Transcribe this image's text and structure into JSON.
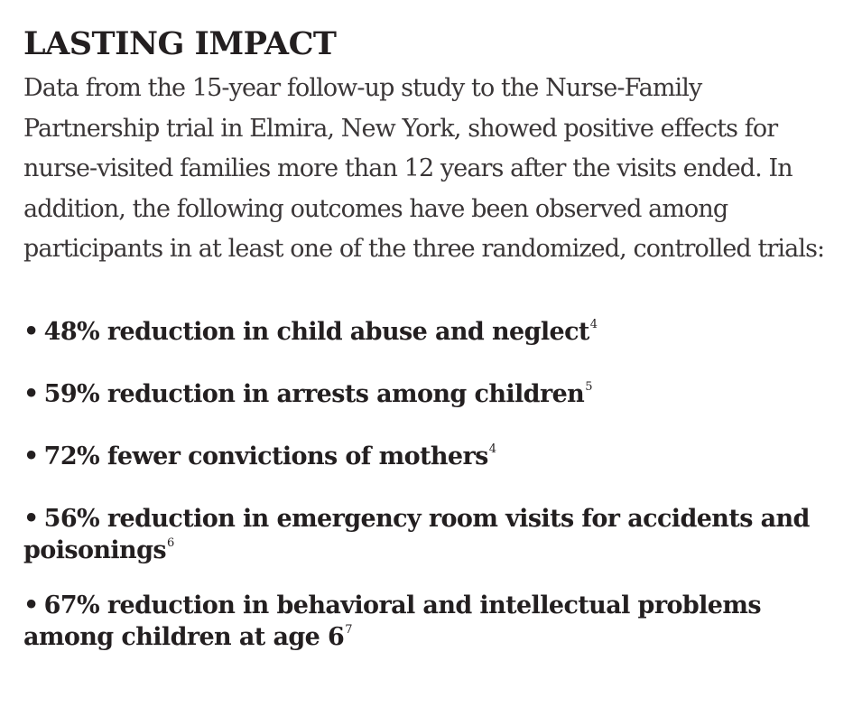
{
  "heading": {
    "title": "LASTING IMPACT"
  },
  "intro": {
    "text": "Data from the 15-year follow-up study to the Nurse-Family Partnership trial in Elmira, New York, showed positive effects for nurse-visited families more than 12 years after the visits ended. In addition, the following outcomes have been observed among participants in at least one of the three randomized, controlled trials:"
  },
  "outcomes": [
    {
      "bullet": "•",
      "text": "48% reduction in child abuse and neglect",
      "ref": "4"
    },
    {
      "bullet": "•",
      "text": "59% reduction in arrests among children",
      "ref": "5"
    },
    {
      "bullet": "•",
      "text": "72% fewer convictions of mothers",
      "ref": "4"
    },
    {
      "bullet": "•",
      "text": "56% reduction in emergency room visits for accidents and poisonings",
      "ref": "6"
    },
    {
      "bullet": "•",
      "text": "67% reduction in behavioral and intellectual problems among children at age 6",
      "ref": "7"
    }
  ]
}
